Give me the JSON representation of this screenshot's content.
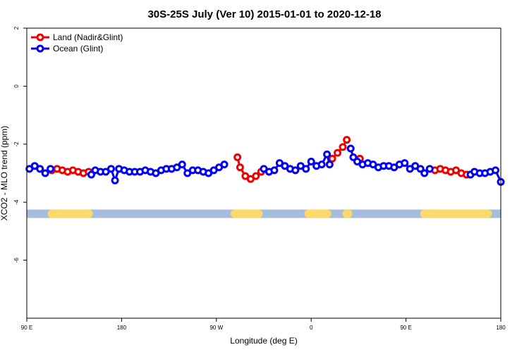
{
  "chart_data": {
    "type": "line",
    "title": "30S-25S July (Ver 10)   2015-01-01 to 2020-12-18",
    "xlabel": "Longitude (deg E)",
    "ylabel": "XCO2 - MLO trend (ppm)",
    "xlim": [
      90,
      450
    ],
    "ylim": [
      -8,
      2
    ],
    "x_ticks": [
      {
        "value": 90,
        "label": "90 E"
      },
      {
        "value": 162,
        "label": "180"
      },
      {
        "value": 234,
        "label": "90 W"
      },
      {
        "value": 306,
        "label": "0"
      },
      {
        "value": 378,
        "label": "90 E"
      },
      {
        "value": 450,
        "label": "180"
      }
    ],
    "y_ticks": [
      2,
      0,
      -2,
      -4,
      -6
    ],
    "grid": false,
    "legend_position": "top-left",
    "series": [
      {
        "name": "Land (Nadir&Glint)",
        "color": "#ee0000",
        "segments": [
          [
            [
              109,
              -2.9
            ],
            [
              113,
              -2.85
            ],
            [
              117,
              -2.9
            ],
            [
              121,
              -2.95
            ],
            [
              125,
              -2.9
            ],
            [
              129,
              -2.95
            ],
            [
              133,
              -3.0
            ],
            [
              137,
              -2.95
            ]
          ],
          [
            [
              250,
              -2.45
            ],
            [
              252,
              -2.8
            ],
            [
              256,
              -3.1
            ],
            [
              260,
              -3.2
            ],
            [
              264,
              -3.1
            ],
            [
              268,
              -2.95
            ]
          ],
          [
            [
              322,
              -2.5
            ],
            [
              326,
              -2.3
            ],
            [
              330,
              -2.1
            ],
            [
              333,
              -1.85
            ]
          ],
          [
            [
              343,
              -2.5
            ]
          ],
          [
            [
              400,
              -2.9
            ],
            [
              404,
              -2.85
            ],
            [
              408,
              -2.9
            ],
            [
              412,
              -2.95
            ],
            [
              416,
              -2.9
            ],
            [
              420,
              -3.0
            ],
            [
              424,
              -3.05
            ]
          ]
        ]
      },
      {
        "name": "Ocean (Glint)",
        "color": "#0000ee",
        "values": [
          [
            92,
            -2.85
          ],
          [
            96,
            -2.75
          ],
          [
            100,
            -2.85
          ],
          [
            104,
            -3.0
          ],
          [
            108,
            -2.85
          ],
          [
            139,
            -3.05
          ],
          [
            142,
            -2.9
          ],
          [
            146,
            -2.95
          ],
          [
            150,
            -2.95
          ],
          [
            154,
            -2.85
          ],
          [
            157,
            -3.25
          ],
          [
            160,
            -2.85
          ],
          [
            164,
            -2.9
          ],
          [
            168,
            -2.95
          ],
          [
            172,
            -2.95
          ],
          [
            176,
            -2.95
          ],
          [
            180,
            -2.9
          ],
          [
            184,
            -2.95
          ],
          [
            188,
            -3.0
          ],
          [
            192,
            -2.9
          ],
          [
            196,
            -2.85
          ],
          [
            200,
            -2.85
          ],
          [
            204,
            -2.8
          ],
          [
            208,
            -2.7
          ],
          [
            212,
            -3.0
          ],
          [
            216,
            -2.9
          ],
          [
            220,
            -2.9
          ],
          [
            224,
            -2.95
          ],
          [
            228,
            -3.0
          ],
          [
            232,
            -2.9
          ],
          [
            236,
            -2.8
          ],
          [
            240,
            -2.7
          ],
          [
            270,
            -2.85
          ],
          [
            274,
            -2.95
          ],
          [
            278,
            -2.9
          ],
          [
            282,
            -2.65
          ],
          [
            286,
            -2.75
          ],
          [
            290,
            -2.85
          ],
          [
            294,
            -2.9
          ],
          [
            298,
            -2.75
          ],
          [
            302,
            -2.85
          ],
          [
            306,
            -2.6
          ],
          [
            310,
            -2.75
          ],
          [
            314,
            -2.7
          ],
          [
            318,
            -2.35
          ],
          [
            320,
            -2.7
          ],
          [
            336,
            -2.15
          ],
          [
            338,
            -2.45
          ],
          [
            341,
            -2.6
          ],
          [
            345,
            -2.7
          ],
          [
            349,
            -2.65
          ],
          [
            353,
            -2.7
          ],
          [
            357,
            -2.8
          ],
          [
            361,
            -2.75
          ],
          [
            365,
            -2.75
          ],
          [
            369,
            -2.8
          ],
          [
            373,
            -2.7
          ],
          [
            377,
            -2.65
          ],
          [
            381,
            -2.85
          ],
          [
            385,
            -2.75
          ],
          [
            389,
            -2.85
          ],
          [
            392,
            -3.0
          ],
          [
            396,
            -2.85
          ],
          [
            427,
            -3.05
          ],
          [
            430,
            -2.95
          ],
          [
            434,
            -3.0
          ],
          [
            438,
            -3.0
          ],
          [
            442,
            -2.95
          ],
          [
            446,
            -2.9
          ],
          [
            450,
            -3.3
          ]
        ]
      }
    ],
    "surface_bar": {
      "y": -4.4,
      "ocean_color": "#a7bcdc",
      "land_color": "#fdd86b",
      "land_ranges": [
        [
          109,
          137
        ],
        [
          248,
          266
        ],
        [
          304,
          318
        ],
        [
          333,
          334
        ],
        [
          392,
          440
        ]
      ]
    }
  }
}
